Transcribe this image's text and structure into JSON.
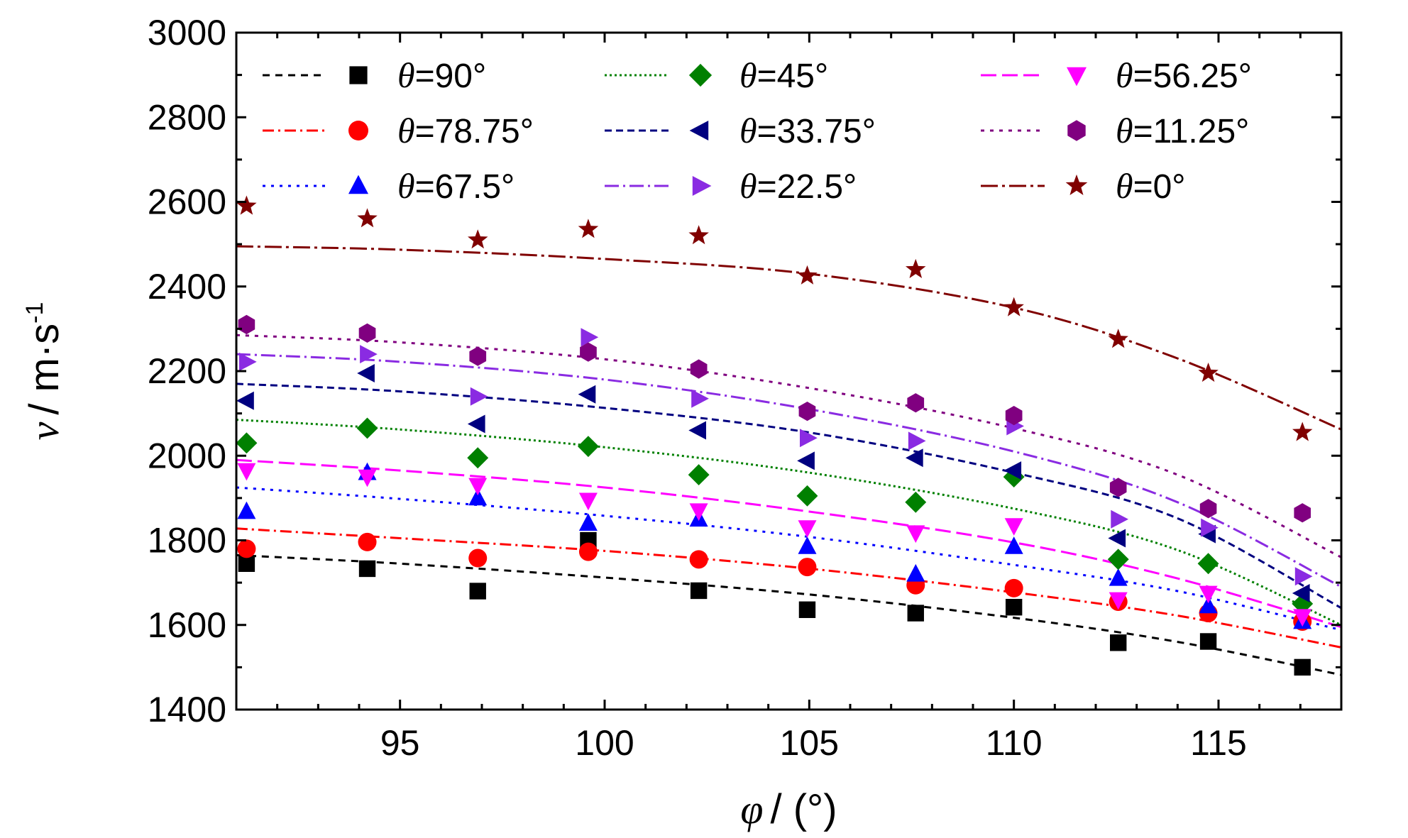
{
  "chart_data": {
    "type": "scatter",
    "xlabel_symbol": "φ",
    "xlabel_unit": "/ (°)",
    "ylabel_symbol": "v",
    "ylabel_unit": "/ m·s",
    "ylabel_exp": "-1",
    "xlim": [
      91,
      118
    ],
    "ylim": [
      1400,
      3000
    ],
    "xticks": [
      95,
      100,
      105,
      110,
      115
    ],
    "yticks": [
      1400,
      1600,
      1800,
      2000,
      2200,
      2400,
      2600,
      2800,
      3000
    ],
    "grid": false,
    "legend_position": "top",
    "theta_symbol": "θ",
    "x": [
      91.25,
      94.2,
      96.9,
      99.6,
      102.3,
      104.95,
      107.6,
      110.0,
      112.55,
      114.75,
      117.05
    ],
    "series": [
      {
        "name": "=90°",
        "color": "#000000",
        "marker": "square",
        "dash": "10,8",
        "values": [
          1745,
          1733,
          1680,
          1800,
          1681,
          1636,
          1628,
          1642,
          1558,
          1561,
          1500
        ],
        "fit": [
          [
            91,
            1765
          ],
          [
            95,
            1745
          ],
          [
            100,
            1712
          ],
          [
            105,
            1672
          ],
          [
            110,
            1617
          ],
          [
            114,
            1560
          ],
          [
            118,
            1482
          ]
        ]
      },
      {
        "name": "=78.75°",
        "color": "#ff0000",
        "marker": "circle",
        "dash": "16,6,3,6",
        "values": [
          1780,
          1796,
          1758,
          1773,
          1755,
          1737,
          1694,
          1687,
          1655,
          1628,
          1608
        ],
        "fit": [
          [
            91,
            1828
          ],
          [
            95,
            1805
          ],
          [
            100,
            1775
          ],
          [
            105,
            1733
          ],
          [
            110,
            1677
          ],
          [
            114,
            1622
          ],
          [
            118,
            1547
          ]
        ]
      },
      {
        "name": "=67.5°",
        "color": "#0000ff",
        "marker": "triangle-up",
        "dash": "4,8",
        "values": [
          1868,
          1960,
          1900,
          1840,
          1850,
          1785,
          1720,
          1785,
          1710,
          1645,
          1608
        ],
        "fit": [
          [
            91,
            1925
          ],
          [
            95,
            1898
          ],
          [
            100,
            1858
          ],
          [
            105,
            1808
          ],
          [
            110,
            1742
          ],
          [
            114,
            1680
          ],
          [
            118,
            1588
          ]
        ]
      },
      {
        "name": "=45°",
        "color": "#008000",
        "marker": "diamond",
        "dash": "3,4",
        "values": [
          2030,
          2065,
          1995,
          2022,
          1955,
          1905,
          1890,
          1950,
          1755,
          1745,
          1650
        ],
        "fit": [
          [
            91,
            2085
          ],
          [
            95,
            2062
          ],
          [
            100,
            2020
          ],
          [
            105,
            1960
          ],
          [
            110,
            1875
          ],
          [
            114,
            1777
          ],
          [
            118,
            1600
          ]
        ]
      },
      {
        "name": "=33.75°",
        "color": "#000080",
        "marker": "triangle-left",
        "dash": "10,6",
        "values": [
          2130,
          2195,
          2075,
          2145,
          2060,
          1988,
          1995,
          1965,
          1805,
          1815,
          1675
        ],
        "fit": [
          [
            91,
            2170
          ],
          [
            95,
            2152
          ],
          [
            100,
            2113
          ],
          [
            105,
            2055
          ],
          [
            110,
            1960
          ],
          [
            114,
            1852
          ],
          [
            118,
            1640
          ]
        ]
      },
      {
        "name": "=22.5°",
        "color": "#8a2be2",
        "marker": "triangle-right",
        "dash": "20,6,3,6",
        "values": [
          2222,
          2240,
          2140,
          2280,
          2135,
          2042,
          2035,
          2070,
          1850,
          1830,
          1715
        ],
        "fit": [
          [
            91,
            2240
          ],
          [
            95,
            2222
          ],
          [
            100,
            2180
          ],
          [
            105,
            2110
          ],
          [
            110,
            2010
          ],
          [
            114,
            1890
          ],
          [
            118,
            1690
          ]
        ]
      },
      {
        "name": "=56.25°",
        "color": "#ff00ff",
        "marker": "triangle-down",
        "dash": "22,8",
        "values": [
          1965,
          1950,
          1930,
          1895,
          1870,
          1830,
          1818,
          1835,
          1660,
          1675,
          1620
        ],
        "fit": [
          [
            91,
            1990
          ],
          [
            95,
            1965
          ],
          [
            100,
            1925
          ],
          [
            105,
            1868
          ],
          [
            110,
            1795
          ],
          [
            114,
            1710
          ],
          [
            118,
            1595
          ]
        ]
      },
      {
        "name": "=11.25°",
        "color": "#800080",
        "marker": "hexagon",
        "dash": "5,8",
        "values": [
          2310,
          2290,
          2235,
          2245,
          2205,
          2105,
          2125,
          2095,
          1925,
          1875,
          1865
        ],
        "fit": [
          [
            91,
            2285
          ],
          [
            95,
            2268
          ],
          [
            100,
            2228
          ],
          [
            105,
            2160
          ],
          [
            110,
            2065
          ],
          [
            114,
            1955
          ],
          [
            118,
            1760
          ]
        ]
      },
      {
        "name": "=0°",
        "color": "#800000",
        "marker": "star",
        "dash": "24,6,4,6",
        "values": [
          2590,
          2560,
          2510,
          2535,
          2520,
          2425,
          2440,
          2350,
          2275,
          2195,
          2055
        ],
        "fit": [
          [
            91,
            2495
          ],
          [
            95,
            2487
          ],
          [
            100,
            2465
          ],
          [
            105,
            2430
          ],
          [
            110,
            2350
          ],
          [
            114,
            2230
          ],
          [
            118,
            2062
          ]
        ]
      }
    ]
  }
}
